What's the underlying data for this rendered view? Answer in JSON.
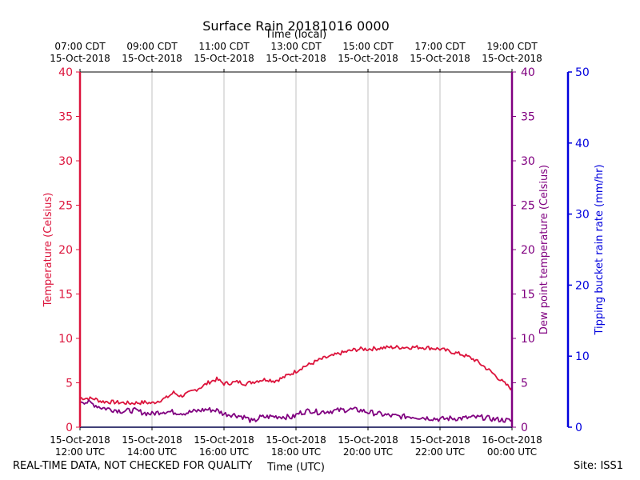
{
  "chart_data": {
    "type": "line",
    "title": "Surface Rain 20181016 0000",
    "xlabel_bottom": "Time (UTC)",
    "xlabel_top": "Time (local)",
    "x_unit": "hours since 15-Oct-2018 12:00 UTC",
    "xlim": [
      0,
      12
    ],
    "bottom_ticks": [
      {
        "x": 0,
        "line1": "15-Oct-2018",
        "line2": "12:00 UTC"
      },
      {
        "x": 2,
        "line1": "15-Oct-2018",
        "line2": "14:00 UTC"
      },
      {
        "x": 4,
        "line1": "15-Oct-2018",
        "line2": "16:00 UTC"
      },
      {
        "x": 6,
        "line1": "15-Oct-2018",
        "line2": "18:00 UTC"
      },
      {
        "x": 8,
        "line1": "15-Oct-2018",
        "line2": "20:00 UTC"
      },
      {
        "x": 10,
        "line1": "15-Oct-2018",
        "line2": "22:00 UTC"
      },
      {
        "x": 12,
        "line1": "16-Oct-2018",
        "line2": "00:00 UTC"
      }
    ],
    "top_ticks": [
      {
        "x": 0,
        "line1": "07:00 CDT",
        "line2": "15-Oct-2018"
      },
      {
        "x": 2,
        "line1": "09:00 CDT",
        "line2": "15-Oct-2018"
      },
      {
        "x": 4,
        "line1": "11:00 CDT",
        "line2": "15-Oct-2018"
      },
      {
        "x": 6,
        "line1": "13:00 CDT",
        "line2": "15-Oct-2018"
      },
      {
        "x": 8,
        "line1": "15:00 CDT",
        "line2": "15-Oct-2018"
      },
      {
        "x": 10,
        "line1": "17:00 CDT",
        "line2": "15-Oct-2018"
      },
      {
        "x": 12,
        "line1": "19:00 CDT",
        "line2": "15-Oct-2018"
      }
    ],
    "vertical_grid": true,
    "left_axis": {
      "label": "Temperature (Celsius)",
      "ylim": [
        0,
        40
      ],
      "ticks": [
        "0",
        "5",
        "10",
        "15",
        "20",
        "25",
        "30",
        "35",
        "40"
      ],
      "color": "#dc143c"
    },
    "right_axis": {
      "label": "Dew point temperature (Celsius)",
      "ylim": [
        0,
        40
      ],
      "ticks": [
        "0",
        "5",
        "10",
        "15",
        "20",
        "25",
        "30",
        "35",
        "40"
      ],
      "color": "#800080"
    },
    "rain_axis": {
      "label": "Tipping bucket rain rate (mm/hr)",
      "ylim": [
        0,
        50
      ],
      "ticks": [
        "0",
        "10",
        "20",
        "30",
        "40",
        "50"
      ],
      "color": "#0000dd"
    },
    "series": [
      {
        "name": "Temperature",
        "axis": "left",
        "color": "#dc143c",
        "x": [
          0,
          0.4,
          0.6,
          1.0,
          1.4,
          1.8,
          2.0,
          2.2,
          2.4,
          2.6,
          2.8,
          3.0,
          3.2,
          3.4,
          3.6,
          3.8,
          4.0,
          4.2,
          4.4,
          4.6,
          4.8,
          5.0,
          5.2,
          5.4,
          5.6,
          5.8,
          6.0,
          6.2,
          6.4,
          6.6,
          6.8,
          7.0,
          7.2,
          7.4,
          7.6,
          7.8,
          8.0,
          8.3,
          8.6,
          8.9,
          9.2,
          9.5,
          9.8,
          10.0,
          10.2,
          10.4,
          10.6,
          10.8,
          11.0,
          11.2,
          11.4,
          11.6,
          11.8,
          12.0
        ],
        "values": [
          3.3,
          3.2,
          2.9,
          2.8,
          2.7,
          2.8,
          2.7,
          3.0,
          3.3,
          3.9,
          3.5,
          3.8,
          4.2,
          4.6,
          5.1,
          5.4,
          4.9,
          5.0,
          5.1,
          4.9,
          5.1,
          5.3,
          5.4,
          5.2,
          5.5,
          5.9,
          6.3,
          6.8,
          7.1,
          7.5,
          7.8,
          8.0,
          8.3,
          8.5,
          8.7,
          8.8,
          8.8,
          8.9,
          9.0,
          9.0,
          9.0,
          9.0,
          8.9,
          8.8,
          8.6,
          8.4,
          8.2,
          7.9,
          7.5,
          6.9,
          6.3,
          5.6,
          4.9,
          4.3
        ]
      },
      {
        "name": "Dew point temperature",
        "axis": "right",
        "color": "#800080",
        "x": [
          0,
          0.3,
          0.6,
          0.9,
          1.2,
          1.5,
          1.8,
          2.0,
          2.3,
          2.6,
          2.9,
          3.2,
          3.5,
          3.8,
          4.0,
          4.3,
          4.6,
          4.8,
          5.0,
          5.3,
          5.6,
          5.9,
          6.1,
          6.4,
          6.6,
          6.9,
          7.2,
          7.5,
          7.8,
          8.0,
          8.3,
          8.6,
          8.9,
          9.2,
          9.5,
          9.8,
          10.0,
          10.3,
          10.6,
          10.9,
          11.2,
          11.5,
          11.8,
          12.0
        ],
        "values": [
          3.0,
          2.7,
          2.2,
          2.0,
          1.8,
          1.9,
          1.6,
          1.5,
          1.8,
          1.7,
          1.6,
          1.8,
          2.0,
          1.9,
          1.5,
          1.4,
          1.1,
          0.6,
          1.1,
          1.2,
          1.2,
          1.1,
          1.6,
          1.9,
          1.7,
          1.8,
          1.9,
          2.0,
          1.9,
          1.7,
          1.5,
          1.3,
          1.2,
          1.2,
          1.1,
          1.0,
          0.9,
          1.0,
          1.0,
          1.1,
          1.1,
          0.9,
          0.8,
          0.7
        ]
      }
    ]
  },
  "footer": {
    "left_note": "REAL-TIME DATA, NOT CHECKED FOR QUALITY",
    "site": "Site: ISS1"
  }
}
